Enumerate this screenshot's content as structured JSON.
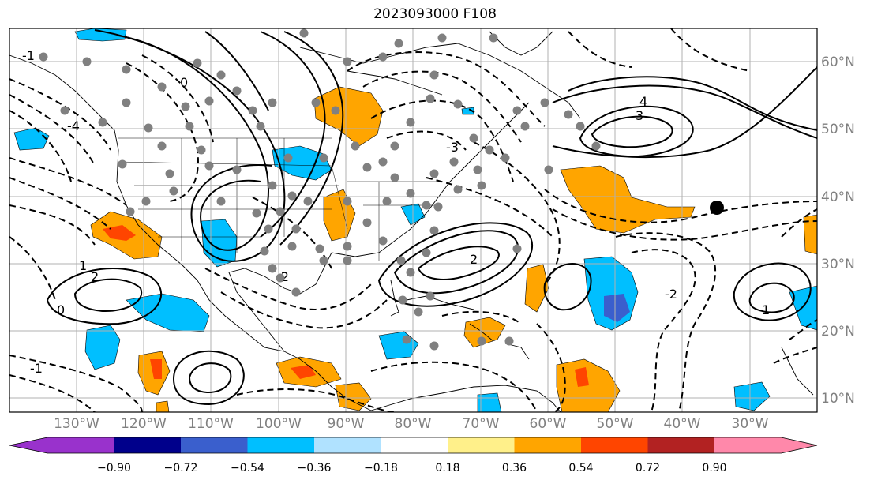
{
  "title": "2023093000 F108",
  "map": {
    "lon_range": [
      -140,
      -20
    ],
    "lat_range": [
      8,
      65
    ],
    "lon_ticks": [
      "130°W",
      "120°W",
      "110°W",
      "100°W",
      "90°W",
      "80°W",
      "70°W",
      "60°W",
      "50°W",
      "40°W",
      "30°W"
    ],
    "lat_ticks": [
      "60°N",
      "50°N",
      "40°N",
      "30°N",
      "20°N",
      "10°N"
    ],
    "gridlines": true,
    "colors": {
      "contour": "#000000",
      "coast": "#000000",
      "grid": "#b0b0b0",
      "station": "#808080",
      "marker": "#000000"
    },
    "contour_labels": [
      "-1",
      "0",
      "1",
      "2",
      "3",
      "4",
      "-2",
      "-3",
      "-4",
      "0",
      "1",
      "2",
      "-1",
      "-2"
    ]
  },
  "colorbar": {
    "ticks": [
      "−0.90",
      "−0.72",
      "−0.54",
      "−0.36",
      "−0.18",
      "0.18",
      "0.36",
      "0.54",
      "0.72",
      "0.90"
    ],
    "colors": [
      "#9932cc",
      "#00008b",
      "#3a5fcd",
      "#00bfff",
      "#b0e2ff",
      "#ffffff",
      "#fff08a",
      "#ffa500",
      "#ff4500",
      "#b22222",
      "#ff88aa"
    ]
  }
}
